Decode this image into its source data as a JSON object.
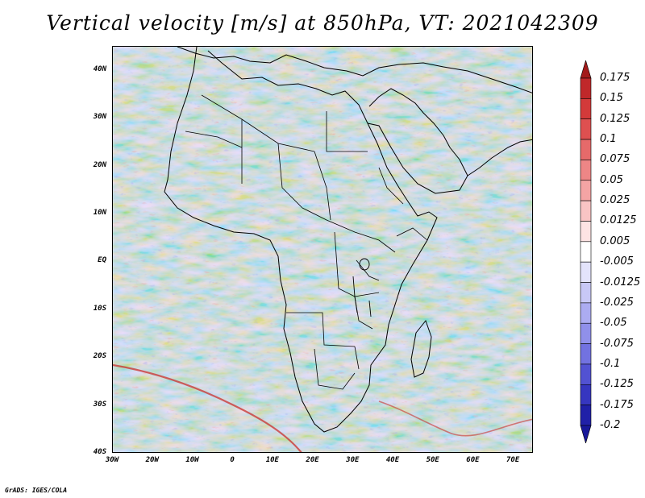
{
  "title": "Vertical velocity [m/s] at 850hPa, VT: 2021042309",
  "map": {
    "variable": "Vertical velocity",
    "units": "m/s",
    "level": "850hPa",
    "valid_time": "2021042309",
    "lon_range": [
      -30,
      75
    ],
    "lat_range": [
      -40,
      45
    ],
    "region": "Africa",
    "lat_labels": [
      "40N",
      "30N",
      "20N",
      "10N",
      "EQ",
      "10S",
      "20S",
      "30S",
      "40S"
    ],
    "lon_labels": [
      "30W",
      "20W",
      "10W",
      "0",
      "10E",
      "20E",
      "30E",
      "40E",
      "50E",
      "60E",
      "70E"
    ]
  },
  "colorbar": {
    "levels": [
      "0.175",
      "0.15",
      "0.125",
      "0.1",
      "0.075",
      "0.05",
      "0.025",
      "0.0125",
      "0.005",
      "-0.005",
      "-0.0125",
      "-0.025",
      "-0.05",
      "-0.075",
      "-0.1",
      "-0.125",
      "-0.175",
      "-0.2"
    ],
    "colors": [
      "#a31a1a",
      "#c0282a",
      "#d33a3a",
      "#de5050",
      "#e66a6a",
      "#ee8686",
      "#f4a4a4",
      "#f9c4c4",
      "#fde3e3",
      "#ffffff",
      "#e3e3fb",
      "#c8c8f6",
      "#acacf1",
      "#9090ea",
      "#7272e0",
      "#5252d2",
      "#3636c0",
      "#2020a8",
      "#18189a"
    ]
  },
  "credit": "GrADS: IGES/COLA"
}
